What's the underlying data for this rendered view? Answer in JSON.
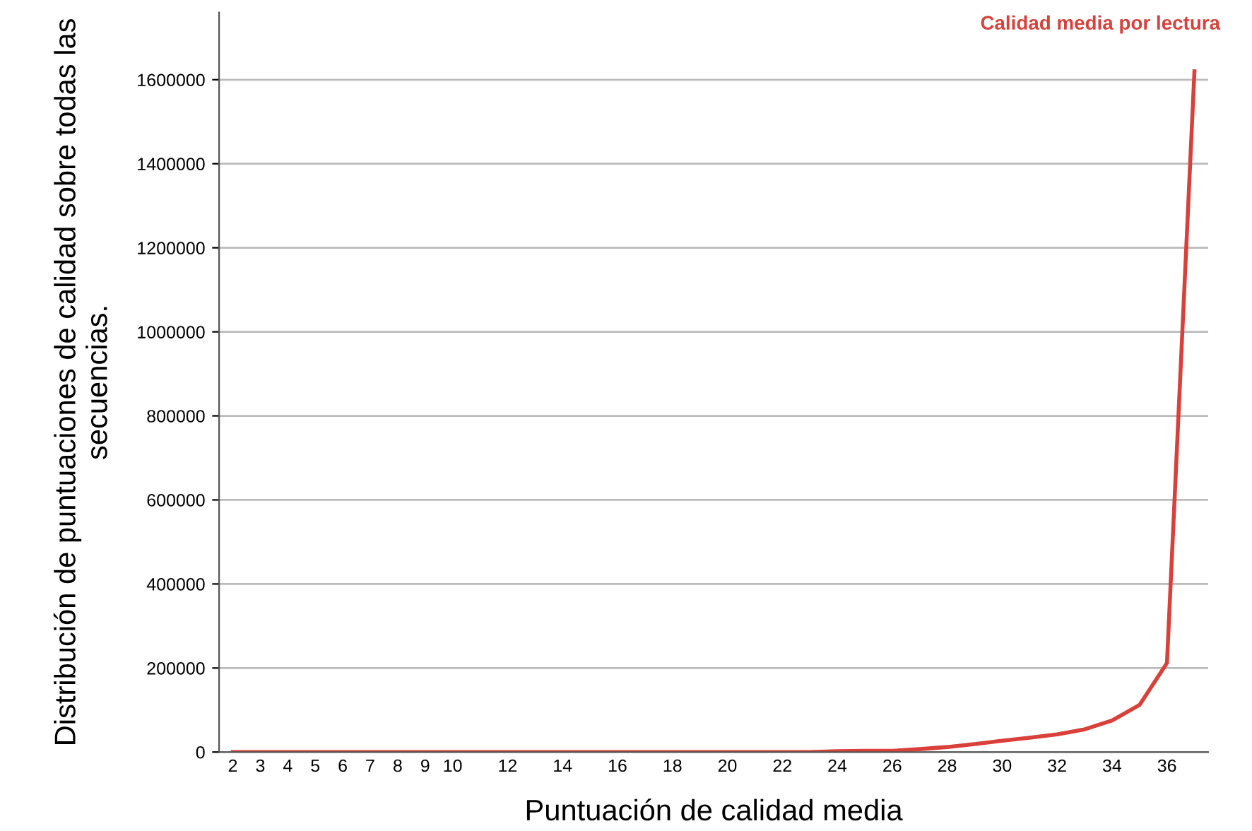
{
  "chart_data": {
    "type": "line",
    "xlabel": "Puntuación de calidad media",
    "ylabel": "Distribución de puntuaciones de calidad sobre todas las secuencias.",
    "categories": [
      "2",
      "3",
      "4",
      "5",
      "6",
      "7",
      "8",
      "9",
      "10",
      null,
      "12",
      null,
      "14",
      null,
      "16",
      null,
      "18",
      null,
      "20",
      null,
      "22",
      null,
      "24",
      null,
      "26",
      null,
      "28",
      null,
      "30",
      null,
      "32",
      null,
      "34",
      null,
      "36",
      null
    ],
    "series": [
      {
        "name": "Calidad media por lectura",
        "color": "#d9403a",
        "values": [
          0,
          0,
          0,
          0,
          0,
          0,
          0,
          0,
          0,
          0,
          0,
          0,
          0,
          0,
          0,
          0,
          0,
          0,
          0,
          0,
          0,
          0,
          2000,
          3000,
          3000,
          7000,
          12000,
          19000,
          27000,
          34000,
          42000,
          54000,
          75000,
          112000,
          212000,
          1620000
        ]
      }
    ],
    "ylim": [
      0,
      1760000
    ],
    "yticks": [
      0,
      200000,
      400000,
      600000,
      800000,
      1000000,
      1200000,
      1400000,
      1600000
    ],
    "grid": "y",
    "legend": "top right",
    "marker": "none",
    "line_style": "solid"
  }
}
